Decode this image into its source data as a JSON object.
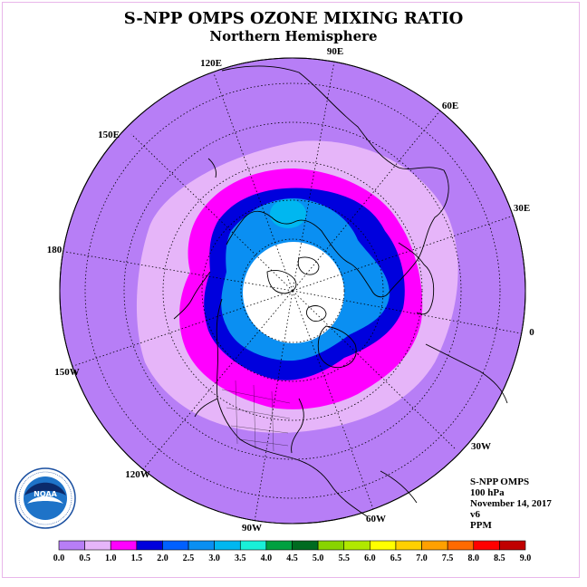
{
  "title": "S-NPP OMPS OZONE MIXING RATIO",
  "subtitle": "Northern Hemisphere",
  "longitude_labels": [
    "90E",
    "60E",
    "30E",
    "0",
    "30W",
    "60W",
    "90W",
    "120W",
    "150W",
    "180",
    "150E",
    "120E"
  ],
  "info": {
    "instrument": "S-NPP OMPS",
    "level": "100 hPa",
    "date": "November 14, 2017",
    "version": "v6",
    "units": "PPM"
  },
  "logo": {
    "text": "NOAA",
    "ring_text": "NATIONAL OCEANIC AND ATMOSPHERIC ADMINISTRATION · U.S. DEPARTMENT OF COMMERCE"
  },
  "colorbar": {
    "ticks": [
      "0.0",
      "0.5",
      "1.0",
      "1.5",
      "2.0",
      "2.5",
      "3.0",
      "3.5",
      "4.0",
      "4.5",
      "5.0",
      "5.5",
      "6.0",
      "6.5",
      "7.0",
      "7.5",
      "8.0",
      "8.5",
      "9.0"
    ],
    "colors": [
      "#b77ef6",
      "#e6b5f9",
      "#ff00ff",
      "#0000dd",
      "#0060ff",
      "#0a8ff2",
      "#00b7f0",
      "#19f0d8",
      "#00a040",
      "#006b20",
      "#88d400",
      "#b0e800",
      "#ffff00",
      "#ffd000",
      "#ffa000",
      "#ff6a00",
      "#ff0000",
      "#c00000"
    ]
  },
  "field_colors": {
    "outer": "#b77ef6",
    "ring_light": "#e6b5f9",
    "ring_magenta": "#ff00ff",
    "ring_blue": "#0000dd",
    "ring_mid_blue": "#0a8ff2",
    "polar_night": "#ffffff"
  }
}
